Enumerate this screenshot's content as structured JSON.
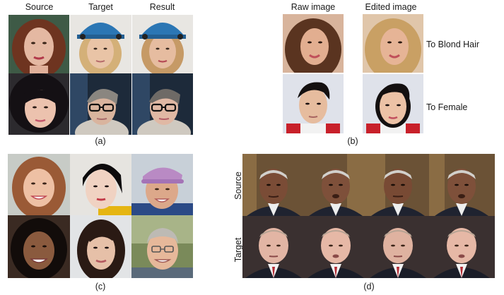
{
  "panel_a": {
    "headers": [
      "Source",
      "Target",
      "Result"
    ],
    "caption": "(a)"
  },
  "panel_b": {
    "headers": [
      "Raw image",
      "Edited image"
    ],
    "edits": [
      "To Blond Hair",
      "To Female"
    ],
    "caption": "(b)"
  },
  "panel_c": {
    "caption": "(c)"
  },
  "panel_d": {
    "row_labels": [
      "Source",
      "Target"
    ],
    "caption": "(d)"
  },
  "colors": {
    "skin": "#e3b49a",
    "dark_hair": "#2a1b14",
    "auburn_hair": "#7a3a22",
    "blond_hair": "#c9a064",
    "helmet_blue": "#2b76b4",
    "suit": "#1f2330",
    "studio_bg": "#6b5236"
  }
}
